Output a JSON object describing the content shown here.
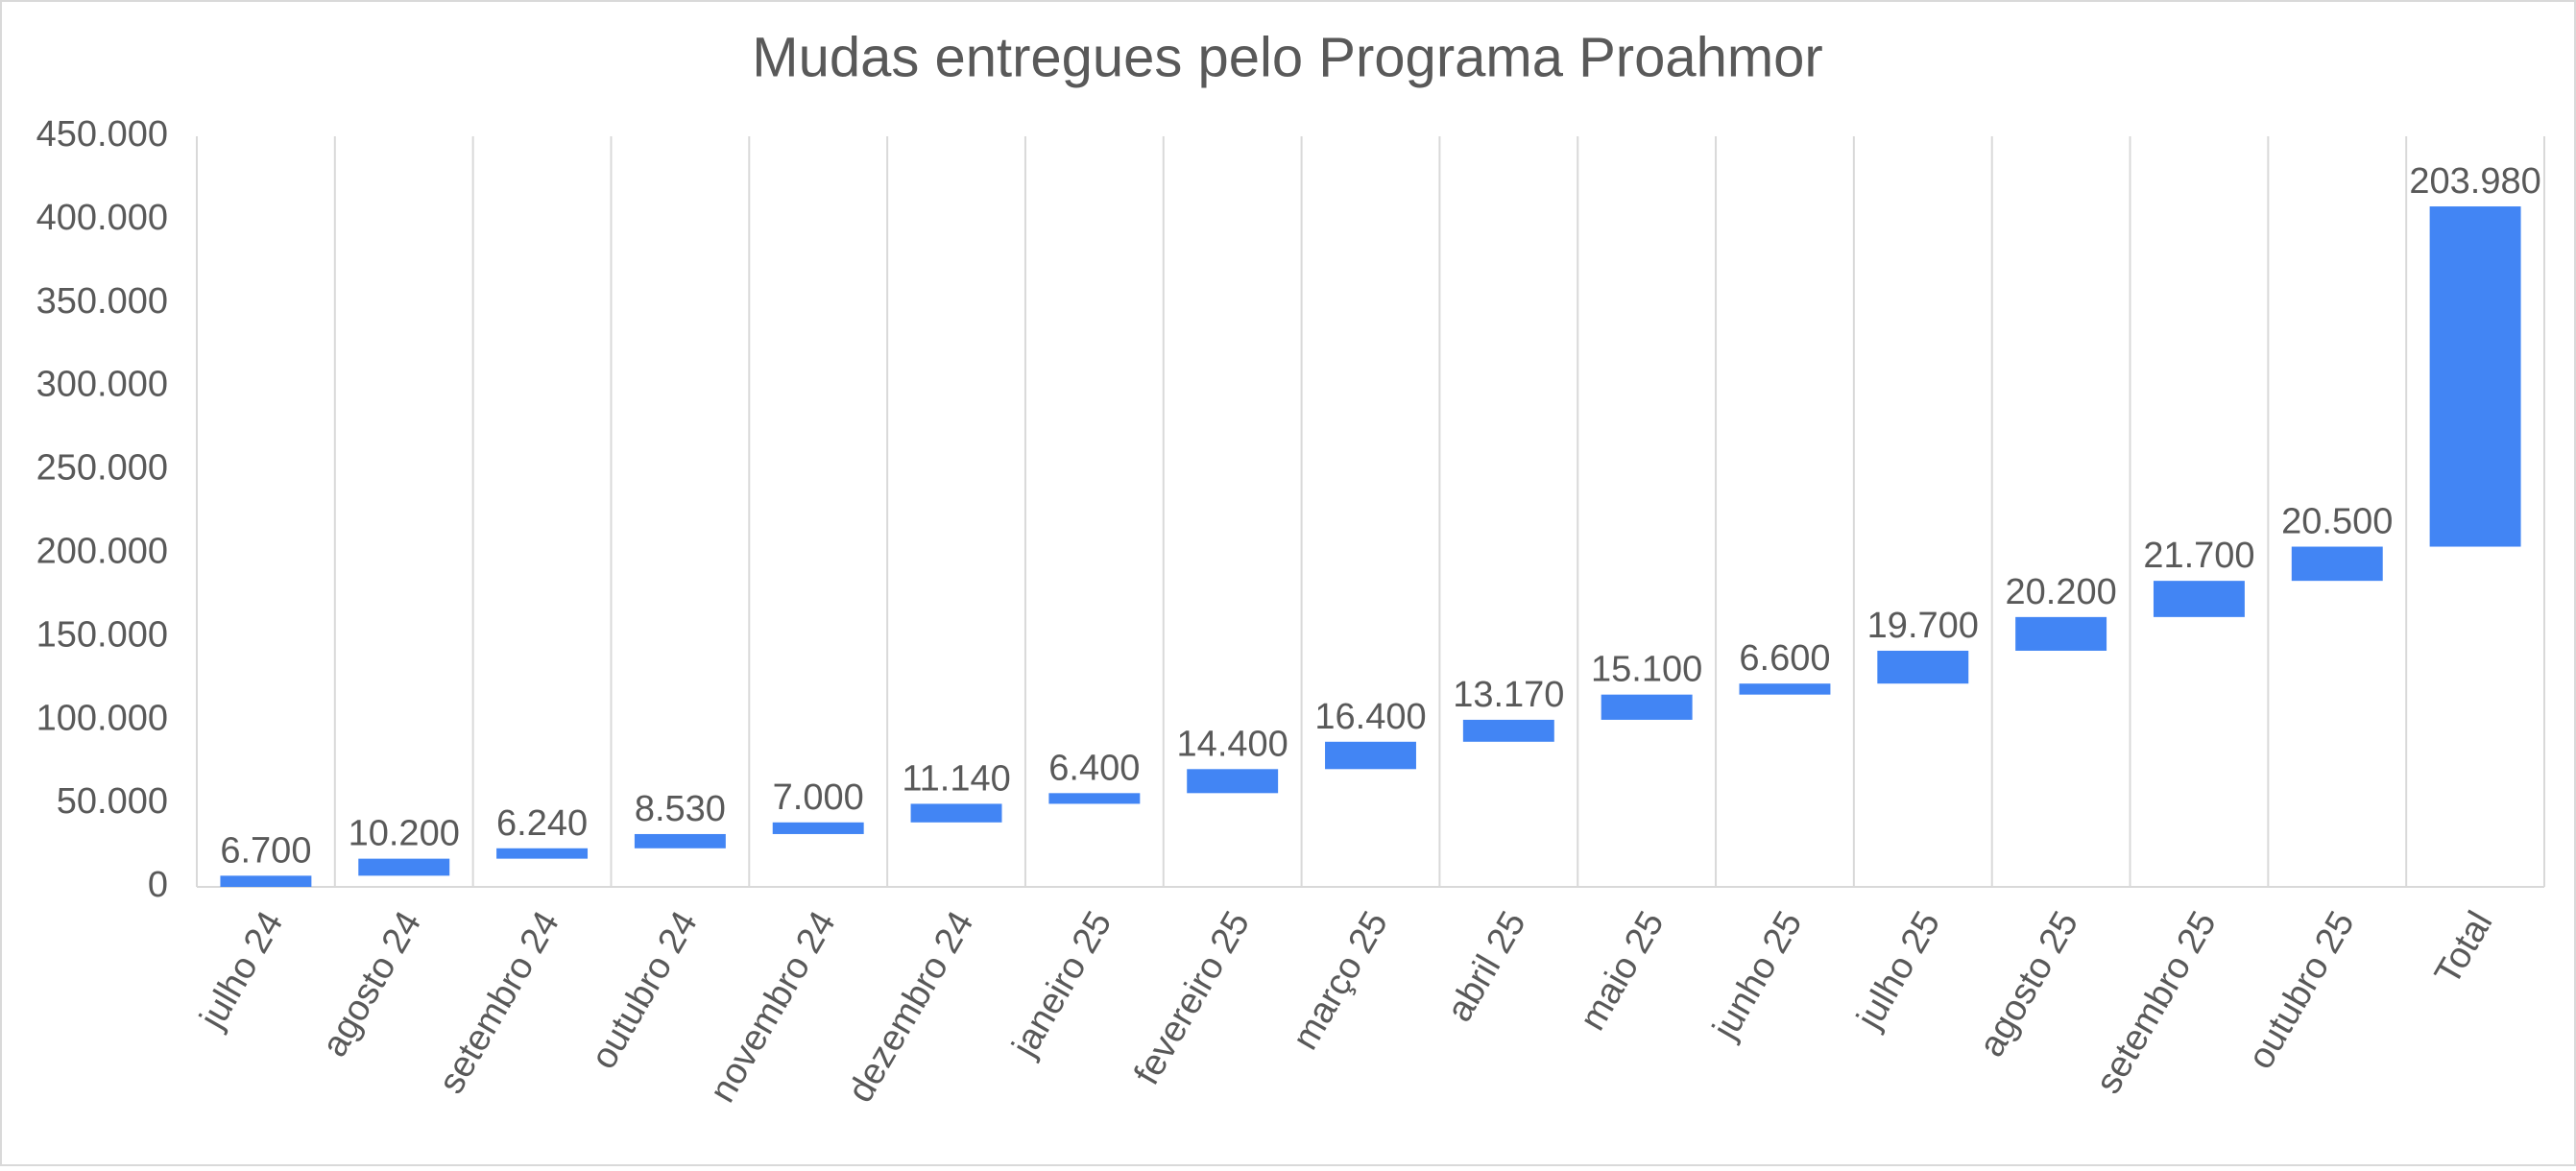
{
  "chart_data": {
    "type": "waterfall",
    "title": "Mudas entregues pelo Programa Proahmor",
    "categories": [
      "julho 24",
      "agosto 24",
      "setembro 24",
      "outubro 24",
      "novembro 24",
      "dezembro 24",
      "janeiro 25",
      "fevereiro 25",
      "março 25",
      "abril 25",
      "maio 25",
      "junho 25",
      "julho 25",
      "agosto 25",
      "setembro 25",
      "outubro 25",
      "Total"
    ],
    "values": [
      6700,
      10200,
      6240,
      8530,
      7000,
      11140,
      6400,
      14400,
      16400,
      13170,
      15100,
      6600,
      19700,
      20200,
      21700,
      20500,
      203980
    ],
    "value_labels": [
      "6.700",
      "10.200",
      "6.240",
      "8.530",
      "7.000",
      "11.140",
      "6.400",
      "14.400",
      "16.400",
      "13.170",
      "15.100",
      "6.600",
      "19.700",
      "20.200",
      "21.700",
      "20.500",
      "203.980"
    ],
    "color": "#4285f4",
    "ylim": [
      0,
      450000
    ],
    "yticks": [
      0,
      {
        "value": 50000,
        "label": "50.000"
      },
      {
        "value": 100000,
        "label": "100.000"
      },
      {
        "value": 150000,
        "label": "150.000"
      },
      {
        "value": 200000,
        "label": "200.000"
      },
      {
        "value": 250000,
        "label": "250.000"
      },
      {
        "value": 300000,
        "label": "300.000"
      },
      {
        "value": 350000,
        "label": "350.000"
      },
      {
        "value": 400000,
        "label": "400.000"
      },
      {
        "value": 450000,
        "label": "450.000"
      }
    ],
    "vertical_grid": true
  }
}
